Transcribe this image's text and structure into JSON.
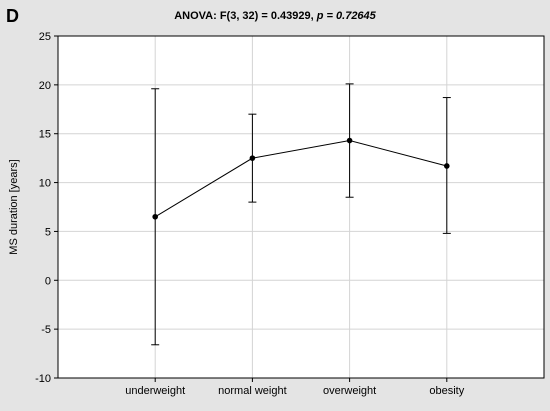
{
  "panel_label": "D",
  "title": {
    "main": "ANOVA: F(3, 32) = 0.43929,",
    "p_symbol": "p",
    "p_value": "= 0.72645"
  },
  "colors": {
    "background": "#e4e4e4",
    "plot_area": "#ffffff",
    "grid": "#d4d4d4",
    "ink": "#000000"
  },
  "chart_data": {
    "type": "line",
    "title": "ANOVA: F(3, 32) = 0.43929, p = 0.72645",
    "xlabel": "",
    "ylabel": "MS duration [years]",
    "categories": [
      "underweight",
      "normal weight",
      "overweight",
      "obesity"
    ],
    "series": [
      {
        "values": [
          6.5,
          12.5,
          14.3,
          11.7
        ],
        "error_low": [
          -6.6,
          8.0,
          8.5,
          4.8
        ],
        "error_high": [
          19.6,
          17.0,
          20.1,
          18.7
        ]
      }
    ],
    "ylim": [
      -10,
      25
    ],
    "yticks": [
      "-10",
      "-5",
      "0",
      "5",
      "10",
      "15",
      "20",
      "25"
    ],
    "grid": true,
    "legend": "none"
  }
}
